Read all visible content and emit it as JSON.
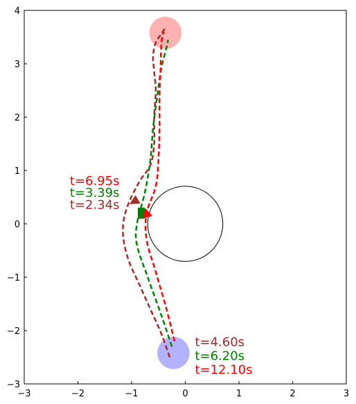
{
  "chart_data": {
    "type": "line",
    "title": "",
    "xlabel": "",
    "ylabel": "",
    "xlim": [
      -3,
      3
    ],
    "ylim": [
      -3,
      4
    ],
    "xticks": [
      "−3",
      "−2",
      "−1",
      "0",
      "1",
      "2",
      "3"
    ],
    "yticks": [
      "−3",
      "−2",
      "−1",
      "0",
      "1",
      "2",
      "3",
      "4"
    ],
    "grid": false,
    "obstacle": {
      "center": [
        0,
        0
      ],
      "radius": 0.7,
      "color": "#000000"
    },
    "start": {
      "center": [
        -0.22,
        -2.42
      ],
      "radius": 0.3,
      "color": "#aaaaff"
    },
    "goal": {
      "center": [
        -0.37,
        3.58
      ],
      "radius": 0.3,
      "color": "#ffaaaa"
    },
    "series": [
      {
        "color": "#a52a2a",
        "dash": "dashed",
        "x": [
          -0.29,
          -0.45,
          -0.65,
          -0.85,
          -1.05,
          -1.15,
          -1.15,
          -1.05,
          -0.85,
          -0.65,
          -0.58,
          -0.58,
          -0.55,
          -0.58,
          -0.6,
          -0.55,
          -0.45,
          -0.36
        ],
        "y": [
          -2.5,
          -2.05,
          -1.6,
          -1.15,
          -0.7,
          -0.3,
          0.05,
          0.4,
          0.8,
          1.1,
          1.5,
          2.0,
          2.5,
          2.85,
          3.15,
          3.4,
          3.55,
          3.7
        ],
        "marker": {
          "kind": "triangle",
          "at": [
            -0.95,
            0.42
          ],
          "angle": 240
        }
      },
      {
        "color": "#008000",
        "dash": "dashed",
        "x": [
          -0.25,
          -0.45,
          -0.7,
          -0.9,
          -0.9,
          -0.75,
          -0.65,
          -0.6,
          -0.52,
          -0.45,
          -0.35,
          -0.32
        ],
        "y": [
          -2.3,
          -1.7,
          -1.0,
          -0.4,
          0.0,
          0.6,
          1.2,
          1.8,
          2.4,
          2.9,
          3.3,
          3.45
        ],
        "marker": {
          "kind": "square",
          "at": [
            -0.82,
            0.2
          ]
        }
      },
      {
        "color": "#ff0000",
        "dash": "dashed",
        "x": [
          -0.2,
          -0.35,
          -0.55,
          -0.72,
          -0.72,
          -0.55,
          -0.5,
          -0.48,
          -0.48,
          -0.46,
          -0.45,
          -0.43,
          -0.4
        ],
        "y": [
          -2.2,
          -1.6,
          -0.9,
          -0.3,
          0.2,
          0.7,
          1.2,
          1.8,
          2.4,
          2.9,
          3.3,
          3.5,
          3.6
        ],
        "marker": {
          "kind": "triangle",
          "at": [
            -0.72,
            0.2
          ],
          "angle": 345
        }
      }
    ],
    "annotations": [
      {
        "text": "t=6.95s",
        "color": "#ff0000",
        "x": -2.15,
        "y": 0.82
      },
      {
        "text": "t=3.39s",
        "color": "#008000",
        "x": -2.15,
        "y": 0.6
      },
      {
        "text": "t=2.34s",
        "color": "#a52a2a",
        "x": -2.15,
        "y": 0.37
      },
      {
        "text": "t=4.60s",
        "color": "#a52a2a",
        "x": 0.18,
        "y": -2.2
      },
      {
        "text": "t=6.20s",
        "color": "#008000",
        "x": 0.18,
        "y": -2.46
      },
      {
        "text": "t=12.10s",
        "color": "#ff0000",
        "x": 0.18,
        "y": -2.72
      }
    ]
  }
}
